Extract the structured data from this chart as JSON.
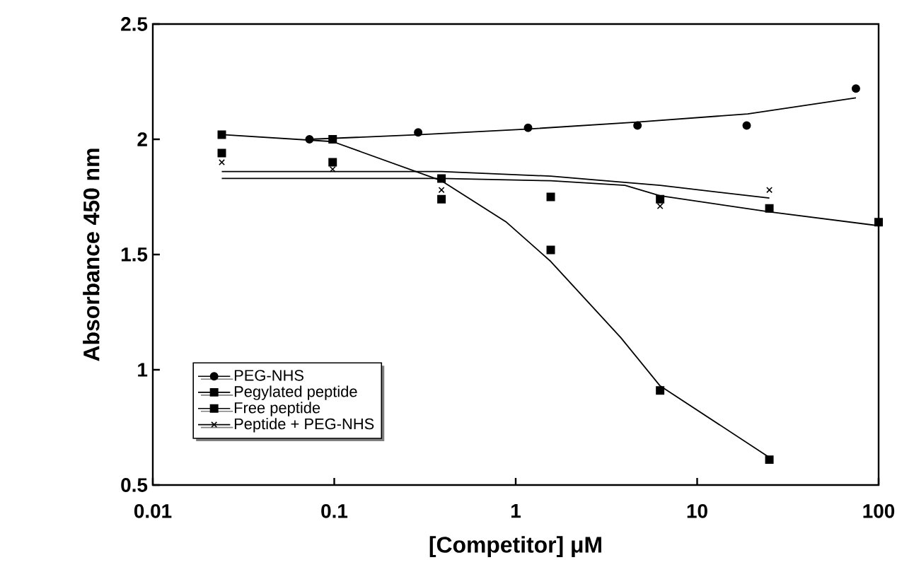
{
  "chart_data": {
    "type": "scatter",
    "xlabel": "[Competitor] μM",
    "ylabel": "Absorbance 450 nm",
    "log": "x",
    "xlim": [
      0.01,
      100
    ],
    "ylim": [
      0.5,
      2.5
    ],
    "xticks": [
      0.01,
      0.1,
      1,
      10,
      100
    ],
    "yticks": [
      0.5,
      1,
      1.5,
      2,
      2.5
    ],
    "legend": "bottom left",
    "series": [
      {
        "name": "PEG-NHS",
        "marker": "circle",
        "color": "#000000",
        "x": [
          0.073,
          0.29,
          1.17,
          4.69,
          18.75,
          75
        ],
        "values": [
          2.0,
          2.03,
          2.05,
          2.06,
          2.06,
          2.22
        ]
      },
      {
        "name": "Pegylated peptide",
        "marker": "square",
        "color": "#000000",
        "x": [
          0.024,
          0.098,
          0.39,
          1.56,
          6.25,
          25
        ],
        "values": [
          2.02,
          2.0,
          1.74,
          1.52,
          0.91,
          0.61
        ]
      },
      {
        "name": "Free peptide",
        "marker": "square",
        "color": "#000000",
        "x": [
          0.024,
          0.098,
          0.39,
          1.56,
          6.25,
          25,
          100
        ],
        "values": [
          1.94,
          1.9,
          1.83,
          1.75,
          1.74,
          1.7,
          1.64
        ]
      },
      {
        "name": "Peptide + PEG-NHS",
        "marker": "cross",
        "color": "#000000",
        "x": [
          0.024,
          0.098,
          0.39,
          6.25,
          25
        ],
        "values": [
          1.9,
          1.87,
          1.78,
          1.71,
          1.78
        ]
      },
      {
        "type": "line",
        "marker": "none",
        "line_style": "solid",
        "color": "#000000",
        "x": [
          0.073,
          0.3,
          1.2,
          4.7,
          19,
          75
        ],
        "values": [
          2.0,
          2.02,
          2.045,
          2.075,
          2.11,
          2.18
        ]
      },
      {
        "type": "line",
        "marker": "none",
        "line_style": "solid",
        "color": "#000000",
        "x": [
          0.024,
          0.098,
          0.39,
          0.89,
          1.56,
          3.79,
          6.25,
          25
        ],
        "values": [
          2.02,
          1.99,
          1.82,
          1.64,
          1.47,
          1.14,
          0.93,
          0.62
        ]
      },
      {
        "type": "line",
        "marker": "none",
        "line_style": "solid",
        "color": "#000000",
        "x": [
          0.024,
          0.39,
          1.56,
          4,
          6.25,
          25,
          100
        ],
        "values": [
          1.83,
          1.83,
          1.82,
          1.8,
          1.755,
          1.685,
          1.625
        ]
      },
      {
        "type": "line",
        "marker": "none",
        "line_style": "solid",
        "color": "#000000",
        "x": [
          0.024,
          0.39,
          1.56,
          6.25,
          25
        ],
        "values": [
          1.86,
          1.86,
          1.84,
          1.8,
          1.745
        ]
      }
    ]
  }
}
